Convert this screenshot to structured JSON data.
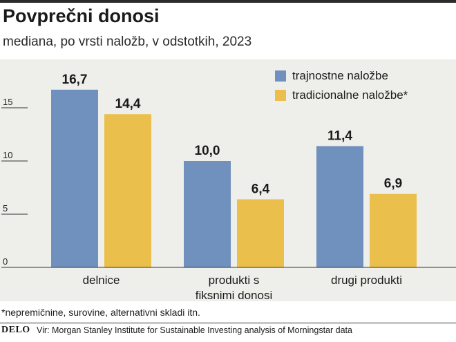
{
  "title": "Povprečni donosi",
  "subtitle": "mediana, po vrsti naložb, v odstotkih, 2023",
  "colors": {
    "series1": "#7090bd",
    "series2": "#ebbf4b",
    "panel": "#eeeeea"
  },
  "chart_data": {
    "type": "bar",
    "categories": [
      [
        "delnice"
      ],
      [
        "produkti s",
        "fiksnimi donosi"
      ],
      [
        "drugi produkti"
      ]
    ],
    "series": [
      {
        "name": "trajnostne naložbe",
        "values": [
          16.7,
          10.0,
          11.4
        ],
        "labels": [
          "16,7",
          "10,0",
          "11,4"
        ]
      },
      {
        "name": "tradicionalne naložbe*",
        "values": [
          14.4,
          6.4,
          6.9
        ],
        "labels": [
          "14,4",
          "6,4",
          "6,9"
        ]
      }
    ],
    "yticks": [
      0,
      5,
      10,
      15
    ],
    "ylim": [
      0,
      20
    ],
    "legend": "top-right",
    "grid": false
  },
  "footnote": "*nepremičnine, surovine, alternativni skladi itn.",
  "logo": "DELO",
  "source": "Vir: Morgan Stanley Institute for Sustainable Investing analysis of Morningstar data"
}
